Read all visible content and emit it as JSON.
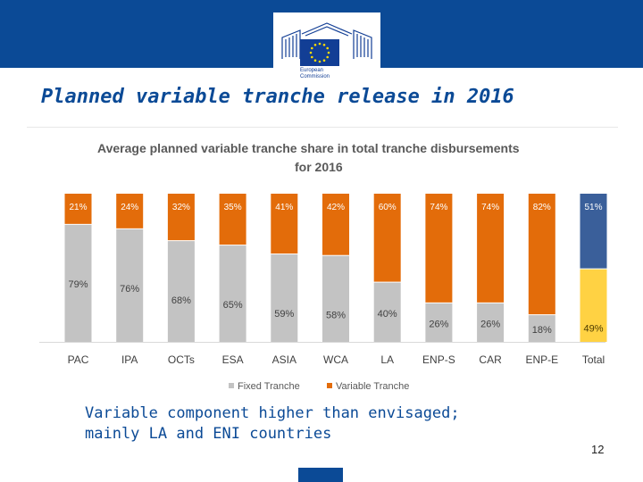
{
  "slide": {
    "title": "Planned variable tranche release in 2016",
    "note_line1": "Variable component higher than envisaged;",
    "note_line2": "mainly LA and ENI countries",
    "page_number": "12",
    "logo_text": "European\nCommission"
  },
  "colors": {
    "header_blue": "#0b4a96",
    "fixed": "#c3c3c3",
    "variable": "#e36c0a",
    "total_fixed": "#ffd243",
    "total_variable": "#3a5f9a"
  },
  "chart_data": {
    "type": "bar",
    "stacked": true,
    "title_line1": "Average planned variable tranche share in total tranche disbursements",
    "title_line2": "for 2016",
    "categories": [
      "PAC",
      "IPA",
      "OCTs",
      "ESA",
      "ASIA",
      "WCA",
      "LA",
      "ENP-S",
      "CAR",
      "ENP-E",
      "Total"
    ],
    "series": [
      {
        "name": "Fixed Tranche",
        "values": [
          79,
          76,
          68,
          65,
          59,
          58,
          40,
          26,
          26,
          18,
          49
        ]
      },
      {
        "name": "Variable Tranche",
        "values": [
          21,
          24,
          32,
          35,
          41,
          42,
          60,
          74,
          74,
          82,
          51
        ]
      }
    ],
    "value_suffix": "%",
    "ylim": [
      0,
      100
    ],
    "grid": false,
    "legend_position": "bottom"
  }
}
